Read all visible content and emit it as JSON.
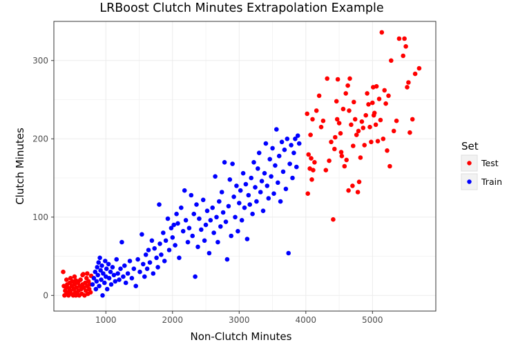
{
  "chart_data": {
    "type": "scatter",
    "title": "LRBoost Clutch Minutes Extrapolation Example",
    "xlabel": "Non-Clutch Minutes",
    "ylabel": "Clutch Minutes",
    "xlim": [
      220,
      5950
    ],
    "ylim": [
      -20,
      350
    ],
    "xticks": [
      1000,
      2000,
      3000,
      4000,
      5000
    ],
    "yticks": [
      0,
      100,
      200,
      300
    ],
    "grid": true,
    "legend": {
      "title": "Set",
      "placement": "right"
    },
    "series": [
      {
        "name": "Test",
        "color": "#ff0000",
        "points": [
          [
            360,
            30
          ],
          [
            370,
            12
          ],
          [
            380,
            0
          ],
          [
            390,
            6
          ],
          [
            400,
            10
          ],
          [
            410,
            2
          ],
          [
            420,
            14
          ],
          [
            430,
            4
          ],
          [
            440,
            0
          ],
          [
            450,
            9
          ],
          [
            460,
            16
          ],
          [
            470,
            6
          ],
          [
            480,
            2
          ],
          [
            490,
            12
          ],
          [
            500,
            18
          ],
          [
            510,
            0
          ],
          [
            520,
            8
          ],
          [
            530,
            14
          ],
          [
            540,
            4
          ],
          [
            550,
            19
          ],
          [
            560,
            10
          ],
          [
            570,
            2
          ],
          [
            580,
            16
          ],
          [
            590,
            6
          ],
          [
            600,
            0
          ],
          [
            610,
            12
          ],
          [
            620,
            20
          ],
          [
            630,
            8
          ],
          [
            640,
            2
          ],
          [
            650,
            14
          ],
          [
            660,
            27
          ],
          [
            670,
            10
          ],
          [
            680,
            0
          ],
          [
            690,
            16
          ],
          [
            700,
            6
          ],
          [
            710,
            22
          ],
          [
            720,
            12
          ],
          [
            730,
            2
          ],
          [
            740,
            18
          ],
          [
            750,
            8
          ],
          [
            760,
            14
          ],
          [
            770,
            4
          ],
          [
            780,
            25
          ],
          [
            410,
            20
          ],
          [
            470,
            22
          ],
          [
            530,
            24
          ],
          [
            590,
            18
          ],
          [
            650,
            26
          ],
          [
            720,
            28
          ],
          [
            550,
            0
          ],
          [
            4020,
            232
          ],
          [
            4030,
            130
          ],
          [
            4040,
            180
          ],
          [
            4060,
            162
          ],
          [
            4070,
            205
          ],
          [
            4080,
            175
          ],
          [
            4090,
            148
          ],
          [
            4100,
            225
          ],
          [
            4110,
            160
          ],
          [
            4130,
            170
          ],
          [
            4160,
            236
          ],
          [
            4200,
            255
          ],
          [
            4230,
            215
          ],
          [
            4260,
            223
          ],
          [
            4300,
            160
          ],
          [
            4320,
            277
          ],
          [
            4350,
            172
          ],
          [
            4380,
            196
          ],
          [
            4410,
            97
          ],
          [
            4430,
            187
          ],
          [
            4440,
            202
          ],
          [
            4460,
            248
          ],
          [
            4470,
            225
          ],
          [
            4480,
            276
          ],
          [
            4500,
            220
          ],
          [
            4520,
            207
          ],
          [
            4530,
            183
          ],
          [
            4540,
            178
          ],
          [
            4560,
            238
          ],
          [
            4580,
            165
          ],
          [
            4600,
            258
          ],
          [
            4610,
            173
          ],
          [
            4630,
            268
          ],
          [
            4640,
            134
          ],
          [
            4650,
            236
          ],
          [
            4660,
            277
          ],
          [
            4680,
            218
          ],
          [
            4700,
            140
          ],
          [
            4710,
            191
          ],
          [
            4720,
            247
          ],
          [
            4740,
            225
          ],
          [
            4760,
            205
          ],
          [
            4780,
            132
          ],
          [
            4790,
            210
          ],
          [
            4800,
            145
          ],
          [
            4820,
            176
          ],
          [
            4840,
            222
          ],
          [
            4860,
            214
          ],
          [
            4880,
            192
          ],
          [
            4900,
            230
          ],
          [
            4920,
            258
          ],
          [
            4940,
            244
          ],
          [
            4960,
            215
          ],
          [
            4980,
            196
          ],
          [
            5000,
            246
          ],
          [
            5010,
            266
          ],
          [
            5020,
            230
          ],
          [
            5030,
            233
          ],
          [
            5050,
            218
          ],
          [
            5060,
            267
          ],
          [
            5080,
            197
          ],
          [
            5100,
            251
          ],
          [
            5120,
            224
          ],
          [
            5140,
            336
          ],
          [
            5160,
            200
          ],
          [
            5180,
            262
          ],
          [
            5200,
            245
          ],
          [
            5220,
            185
          ],
          [
            5240,
            255
          ],
          [
            5260,
            165
          ],
          [
            5280,
            300
          ],
          [
            5320,
            210
          ],
          [
            5360,
            223
          ],
          [
            5400,
            328
          ],
          [
            5460,
            306
          ],
          [
            5480,
            328
          ],
          [
            5500,
            318
          ],
          [
            5520,
            266
          ],
          [
            5540,
            272
          ],
          [
            5560,
            208
          ],
          [
            5600,
            225
          ],
          [
            5640,
            283
          ],
          [
            5700,
            290
          ]
        ]
      },
      {
        "name": "Train",
        "color": "#0000ff",
        "points": [
          [
            800,
            14
          ],
          [
            820,
            22
          ],
          [
            840,
            30
          ],
          [
            850,
            8
          ],
          [
            860,
            18
          ],
          [
            870,
            36
          ],
          [
            880,
            26
          ],
          [
            890,
            42
          ],
          [
            900,
            12
          ],
          [
            910,
            48
          ],
          [
            920,
            32
          ],
          [
            930,
            20
          ],
          [
            940,
            38
          ],
          [
            950,
            0
          ],
          [
            960,
            28
          ],
          [
            980,
            16
          ],
          [
            990,
            44
          ],
          [
            1000,
            24
          ],
          [
            1010,
            34
          ],
          [
            1020,
            8
          ],
          [
            1040,
            40
          ],
          [
            1050,
            22
          ],
          [
            1070,
            30
          ],
          [
            1080,
            14
          ],
          [
            1100,
            36
          ],
          [
            1120,
            26
          ],
          [
            1140,
            18
          ],
          [
            1160,
            46
          ],
          [
            1180,
            28
          ],
          [
            1200,
            20
          ],
          [
            1220,
            34
          ],
          [
            1240,
            68
          ],
          [
            1260,
            24
          ],
          [
            1280,
            38
          ],
          [
            1300,
            16
          ],
          [
            1330,
            28
          ],
          [
            1360,
            44
          ],
          [
            1390,
            22
          ],
          [
            1420,
            34
          ],
          [
            1450,
            12
          ],
          [
            1480,
            46
          ],
          [
            1510,
            30
          ],
          [
            1540,
            78
          ],
          [
            1560,
            40
          ],
          [
            1580,
            24
          ],
          [
            1600,
            52
          ],
          [
            1620,
            34
          ],
          [
            1640,
            58
          ],
          [
            1660,
            42
          ],
          [
            1690,
            70
          ],
          [
            1710,
            28
          ],
          [
            1730,
            60
          ],
          [
            1760,
            48
          ],
          [
            1780,
            36
          ],
          [
            1800,
            116
          ],
          [
            1810,
            66
          ],
          [
            1830,
            52
          ],
          [
            1860,
            80
          ],
          [
            1880,
            44
          ],
          [
            1900,
            70
          ],
          [
            1930,
            98
          ],
          [
            1950,
            58
          ],
          [
            1980,
            86
          ],
          [
            2000,
            74
          ],
          [
            2020,
            90
          ],
          [
            2040,
            64
          ],
          [
            2060,
            104
          ],
          [
            2080,
            92
          ],
          [
            2100,
            48
          ],
          [
            2130,
            112
          ],
          [
            2160,
            82
          ],
          [
            2180,
            134
          ],
          [
            2200,
            96
          ],
          [
            2230,
            68
          ],
          [
            2250,
            86
          ],
          [
            2280,
            128
          ],
          [
            2300,
            76
          ],
          [
            2320,
            104
          ],
          [
            2340,
            24
          ],
          [
            2360,
            116
          ],
          [
            2380,
            62
          ],
          [
            2400,
            98
          ],
          [
            2430,
            84
          ],
          [
            2460,
            122
          ],
          [
            2480,
            70
          ],
          [
            2500,
            90
          ],
          [
            2520,
            108
          ],
          [
            2550,
            54
          ],
          [
            2570,
            96
          ],
          [
            2600,
            112
          ],
          [
            2620,
            80
          ],
          [
            2640,
            152
          ],
          [
            2660,
            100
          ],
          [
            2680,
            68
          ],
          [
            2700,
            120
          ],
          [
            2720,
            88
          ],
          [
            2740,
            132
          ],
          [
            2760,
            106
          ],
          [
            2780,
            170
          ],
          [
            2800,
            94
          ],
          [
            2820,
            46
          ],
          [
            2840,
            114
          ],
          [
            2860,
            148
          ],
          [
            2880,
            76
          ],
          [
            2900,
            168
          ],
          [
            2920,
            126
          ],
          [
            2940,
            100
          ],
          [
            2960,
            140
          ],
          [
            2980,
            82
          ],
          [
            3000,
            118
          ],
          [
            3020,
            134
          ],
          [
            3040,
            96
          ],
          [
            3060,
            156
          ],
          [
            3080,
            112
          ],
          [
            3100,
            142
          ],
          [
            3120,
            72
          ],
          [
            3140,
            128
          ],
          [
            3160,
            116
          ],
          [
            3180,
            150
          ],
          [
            3200,
            104
          ],
          [
            3220,
            170
          ],
          [
            3240,
            138
          ],
          [
            3260,
            120
          ],
          [
            3280,
            162
          ],
          [
            3300,
            182
          ],
          [
            3320,
            132
          ],
          [
            3340,
            146
          ],
          [
            3360,
            108
          ],
          [
            3380,
            156
          ],
          [
            3400,
            194
          ],
          [
            3420,
            140
          ],
          [
            3440,
            124
          ],
          [
            3460,
            174
          ],
          [
            3480,
            152
          ],
          [
            3500,
            188
          ],
          [
            3520,
            130
          ],
          [
            3540,
            166
          ],
          [
            3560,
            212
          ],
          [
            3580,
            144
          ],
          [
            3600,
            178
          ],
          [
            3620,
            120
          ],
          [
            3640,
            196
          ],
          [
            3660,
            158
          ],
          [
            3680,
            186
          ],
          [
            3700,
            136
          ],
          [
            3720,
            200
          ],
          [
            3740,
            54
          ],
          [
            3760,
            168
          ],
          [
            3780,
            192
          ],
          [
            3800,
            150
          ],
          [
            3820,
            182
          ],
          [
            3840,
            200
          ],
          [
            3860,
            164
          ],
          [
            3880,
            204
          ],
          [
            3900,
            194
          ]
        ]
      }
    ]
  }
}
